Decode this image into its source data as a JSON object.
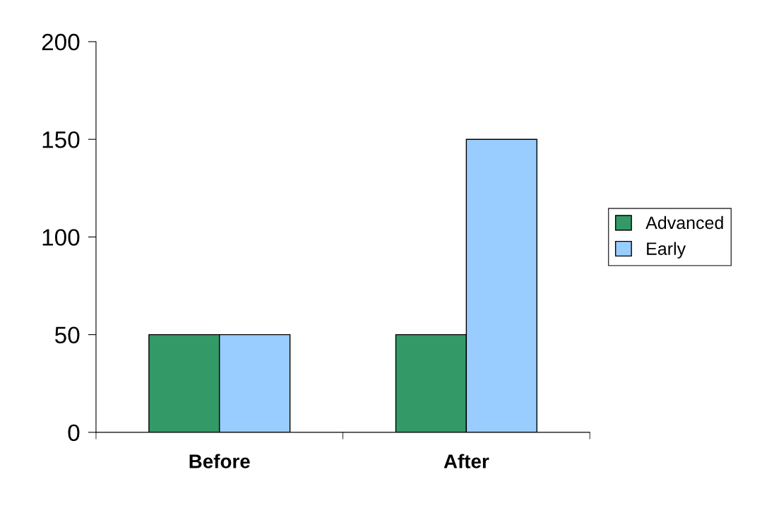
{
  "chart_data": {
    "type": "bar",
    "categories": [
      "Before",
      "After"
    ],
    "series": [
      {
        "name": "Advanced",
        "color": "#339966",
        "values": [
          50,
          50
        ]
      },
      {
        "name": "Early",
        "color": "#99ccff",
        "values": [
          50,
          150
        ]
      }
    ],
    "ylim": [
      0,
      200
    ],
    "yticks": [
      0,
      50,
      100,
      150,
      200
    ],
    "grid": false,
    "legend": "right"
  }
}
